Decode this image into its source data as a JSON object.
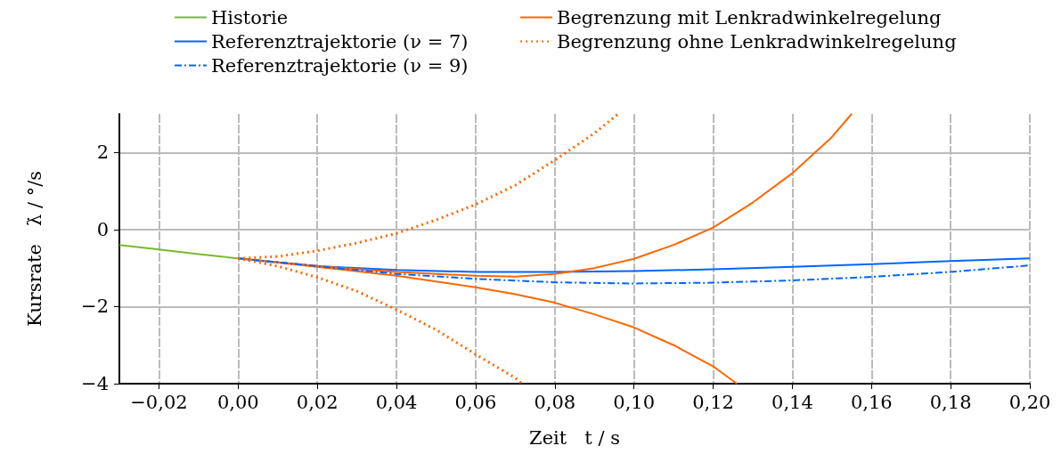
{
  "chart_data": {
    "type": "line",
    "xlabel": "Zeit   t / s",
    "ylabel": "Kursrate   λ̇ / °/s",
    "xlim": [
      -0.03,
      0.2
    ],
    "xticks": [
      {
        "value": -0.02,
        "label": "−0,02"
      },
      {
        "value": 0,
        "label": "0,00"
      },
      {
        "value": 0.02,
        "label": "0,02"
      },
      {
        "value": 0.04,
        "label": "0,04"
      },
      {
        "value": 0.06,
        "label": "0,06"
      },
      {
        "value": 0.08,
        "label": "0,08"
      },
      {
        "value": 0.1,
        "label": "0,10"
      },
      {
        "value": 0.12,
        "label": "0,12"
      },
      {
        "value": 0.14,
        "label": "0,14"
      },
      {
        "value": 0.16,
        "label": "0,16"
      },
      {
        "value": 0.18,
        "label": "0,18"
      },
      {
        "value": 0.2,
        "label": "0,20"
      }
    ],
    "ylim": [
      -4,
      3
    ],
    "yticks": [
      {
        "value": -4,
        "label": "−4"
      },
      {
        "value": -2,
        "label": "−2"
      },
      0,
      2
    ],
    "grid": true,
    "legend": "top",
    "marker": "none",
    "series": [
      {
        "name": "Historie",
        "color": "#7cb82f",
        "line_style": "solid",
        "x": [
          -0.03,
          -0.02,
          -0.01,
          0
        ],
        "values": [
          -0.4,
          -0.52,
          -0.64,
          -0.75
        ]
      },
      {
        "name": "Referenztrajektorie (ν = 7)",
        "color": "#0066ff",
        "line_style": "solid",
        "x": [
          0,
          0.02,
          0.04,
          0.06,
          0.08,
          0.1,
          0.12,
          0.14,
          0.16,
          0.18,
          0.2
        ],
        "values": [
          -0.75,
          -0.95,
          -1.05,
          -1.1,
          -1.1,
          -1.08,
          -1.03,
          -0.97,
          -0.9,
          -0.82,
          -0.75
        ]
      },
      {
        "name": "Referenztrajektorie (ν = 9)",
        "color": "#0066ff",
        "line_style": "dashdot",
        "x": [
          0,
          0.02,
          0.04,
          0.06,
          0.08,
          0.1,
          0.12,
          0.14,
          0.16,
          0.18,
          0.2
        ],
        "values": [
          -0.75,
          -0.95,
          -1.15,
          -1.28,
          -1.37,
          -1.4,
          -1.38,
          -1.32,
          -1.23,
          -1.1,
          -0.93
        ]
      },
      {
        "name": "Begrenzung mit Lenkradwinkelregelung",
        "color": "#ff6600",
        "line_style": "solid",
        "x": [
          0,
          0.02,
          0.04,
          0.06,
          0.07,
          0.08,
          0.09,
          0.1,
          0.11,
          0.12,
          0.13,
          0.14,
          0.15,
          0.155,
          null,
          0,
          0.02,
          0.04,
          0.06,
          0.07,
          0.08,
          0.09,
          0.1,
          0.11,
          0.12,
          0.126
        ],
        "values": [
          -0.75,
          -0.95,
          -1.1,
          -1.2,
          -1.22,
          -1.15,
          -1.0,
          -0.76,
          -0.4,
          0.05,
          0.7,
          1.46,
          2.4,
          3,
          null,
          -0.75,
          -0.97,
          -1.2,
          -1.5,
          -1.68,
          -1.9,
          -2.2,
          -2.54,
          -3.0,
          -3.55,
          -4
        ]
      },
      {
        "name": "Begrenzung ohne Lenkradwinkelregelung",
        "color": "#ff6600",
        "line_style": "dotted",
        "x": [
          0,
          0.01,
          0.02,
          0.03,
          0.04,
          0.05,
          0.06,
          0.07,
          0.08,
          0.09,
          0.096,
          null,
          0,
          0.01,
          0.02,
          0.03,
          0.04,
          0.05,
          0.06,
          0.07,
          0.0717
        ],
        "values": [
          -0.75,
          -0.7,
          -0.55,
          -0.35,
          -0.1,
          0.25,
          0.65,
          1.15,
          1.8,
          2.5,
          3,
          null,
          -0.75,
          -0.95,
          -1.24,
          -1.6,
          -2.08,
          -2.6,
          -3.24,
          -3.85,
          -4
        ]
      }
    ]
  }
}
